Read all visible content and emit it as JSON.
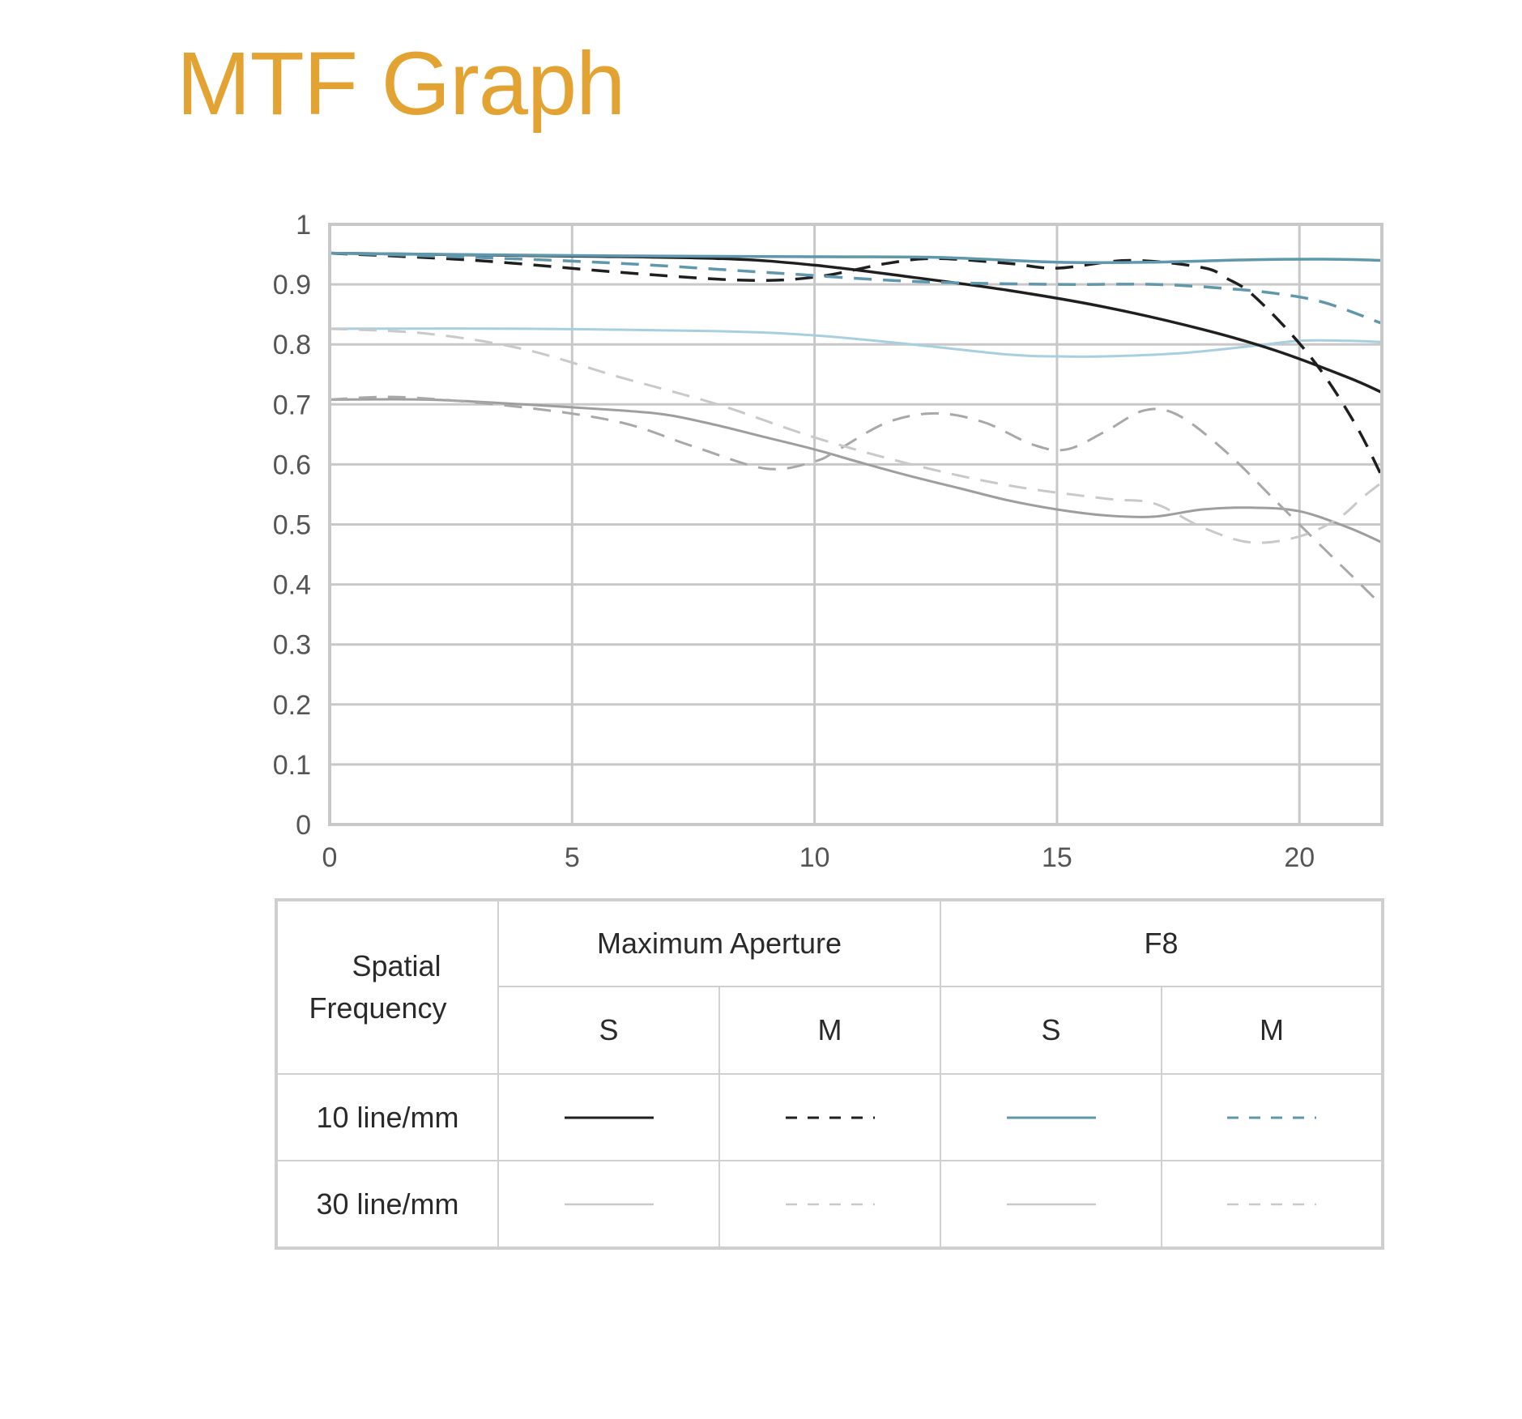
{
  "colors": {
    "title": "#E3A332",
    "grid": "#c8c8c8",
    "frame": "#c8c8c8",
    "max_aperture_10": "#1f1f1f",
    "f8_10": "#5f97ad",
    "max_aperture_30": "#9e9e9e",
    "max_aperture_30_m": "#a8a8a8",
    "f8_30_s": "#a8cfe0",
    "f8_30_m": "#c9c9c9"
  },
  "title": "MTF Graph",
  "chart_data": {
    "type": "line",
    "title": "MTF Graph",
    "xlabel": "",
    "ylabel": "",
    "xlim": [
      0,
      21.7
    ],
    "ylim": [
      0,
      1
    ],
    "x_ticks": [
      "0",
      "5",
      "10",
      "15",
      "20"
    ],
    "y_ticks": [
      "0",
      "0.1",
      "0.2",
      "0.3",
      "0.4",
      "0.5",
      "0.6",
      "0.7",
      "0.8",
      "0.9",
      "1"
    ],
    "grid": true,
    "series": [
      {
        "aperture": "Maximum Aperture",
        "frequency": "10 line/mm",
        "direction": "S",
        "color": "#1f1f1f",
        "dashed": false,
        "points": [
          [
            0,
            0.952
          ],
          [
            4,
            0.948
          ],
          [
            8,
            0.943
          ],
          [
            10,
            0.932
          ],
          [
            12,
            0.912
          ],
          [
            14,
            0.89
          ],
          [
            16,
            0.862
          ],
          [
            18,
            0.825
          ],
          [
            19.5,
            0.79
          ],
          [
            21,
            0.745
          ],
          [
            21.7,
            0.72
          ]
        ]
      },
      {
        "aperture": "Maximum Aperture",
        "frequency": "10 line/mm",
        "direction": "M",
        "color": "#1f1f1f",
        "dashed": true,
        "points": [
          [
            0,
            0.952
          ],
          [
            3,
            0.94
          ],
          [
            6,
            0.92
          ],
          [
            8.5,
            0.907
          ],
          [
            10,
            0.912
          ],
          [
            11.5,
            0.935
          ],
          [
            12.5,
            0.943
          ],
          [
            14,
            0.935
          ],
          [
            15,
            0.927
          ],
          [
            16.5,
            0.94
          ],
          [
            18,
            0.928
          ],
          [
            18.5,
            0.91
          ],
          [
            19,
            0.885
          ],
          [
            19.8,
            0.82
          ],
          [
            20.5,
            0.75
          ],
          [
            21.2,
            0.66
          ],
          [
            21.7,
            0.58
          ]
        ]
      },
      {
        "aperture": "F8",
        "frequency": "10 line/mm",
        "direction": "S",
        "color": "#5f97ad",
        "dashed": false,
        "points": [
          [
            0,
            0.952
          ],
          [
            5,
            0.948
          ],
          [
            10,
            0.946
          ],
          [
            12.5,
            0.945
          ],
          [
            15,
            0.937
          ],
          [
            17,
            0.937
          ],
          [
            19,
            0.941
          ],
          [
            20.5,
            0.942
          ],
          [
            21.7,
            0.94
          ]
        ]
      },
      {
        "aperture": "F8",
        "frequency": "10 line/mm",
        "direction": "M",
        "color": "#5f97ad",
        "dashed": true,
        "points": [
          [
            0,
            0.952
          ],
          [
            3,
            0.945
          ],
          [
            6,
            0.935
          ],
          [
            9,
            0.92
          ],
          [
            12,
            0.905
          ],
          [
            15,
            0.9
          ],
          [
            17,
            0.9
          ],
          [
            18.5,
            0.893
          ],
          [
            19.5,
            0.885
          ],
          [
            20.5,
            0.87
          ],
          [
            21.7,
            0.835
          ]
        ]
      },
      {
        "aperture": "Maximum Aperture",
        "frequency": "30 line/mm",
        "direction": "S",
        "color": "#9e9e9e",
        "dashed": false,
        "points": [
          [
            0,
            0.708
          ],
          [
            2,
            0.708
          ],
          [
            4,
            0.7
          ],
          [
            6,
            0.69
          ],
          [
            7,
            0.682
          ],
          [
            8,
            0.665
          ],
          [
            9,
            0.645
          ],
          [
            10,
            0.625
          ],
          [
            11,
            0.602
          ],
          [
            12,
            0.58
          ],
          [
            13,
            0.56
          ],
          [
            14,
            0.54
          ],
          [
            15,
            0.525
          ],
          [
            16,
            0.515
          ],
          [
            17,
            0.513
          ],
          [
            18,
            0.525
          ],
          [
            19,
            0.528
          ],
          [
            20,
            0.522
          ],
          [
            21,
            0.495
          ],
          [
            21.7,
            0.47
          ]
        ]
      },
      {
        "aperture": "Maximum Aperture",
        "frequency": "30 line/mm",
        "direction": "M",
        "color": "#a8a8a8",
        "dashed": true,
        "points": [
          [
            0,
            0.708
          ],
          [
            1.5,
            0.712
          ],
          [
            4,
            0.695
          ],
          [
            6,
            0.67
          ],
          [
            7.5,
            0.63
          ],
          [
            9,
            0.593
          ],
          [
            10,
            0.605
          ],
          [
            10.5,
            0.625
          ],
          [
            11.5,
            0.67
          ],
          [
            12.5,
            0.685
          ],
          [
            13.5,
            0.67
          ],
          [
            14.5,
            0.633
          ],
          [
            15.2,
            0.625
          ],
          [
            16,
            0.655
          ],
          [
            16.8,
            0.69
          ],
          [
            17.5,
            0.682
          ],
          [
            18.5,
            0.62
          ],
          [
            19.5,
            0.54
          ],
          [
            20.5,
            0.46
          ],
          [
            21.2,
            0.405
          ],
          [
            21.7,
            0.365
          ]
        ]
      },
      {
        "aperture": "F8",
        "frequency": "30 line/mm",
        "direction": "S",
        "color": "#a8cfe0",
        "dashed": false,
        "points": [
          [
            0,
            0.826
          ],
          [
            4,
            0.826
          ],
          [
            8,
            0.822
          ],
          [
            10,
            0.815
          ],
          [
            12,
            0.8
          ],
          [
            14,
            0.783
          ],
          [
            15,
            0.78
          ],
          [
            16,
            0.78
          ],
          [
            17.5,
            0.785
          ],
          [
            19,
            0.797
          ],
          [
            20,
            0.806
          ],
          [
            21,
            0.806
          ],
          [
            21.7,
            0.804
          ]
        ]
      },
      {
        "aperture": "F8",
        "frequency": "30 line/mm",
        "direction": "M",
        "color": "#c9c9c9",
        "dashed": true,
        "points": [
          [
            0,
            0.826
          ],
          [
            2,
            0.818
          ],
          [
            4,
            0.792
          ],
          [
            6,
            0.745
          ],
          [
            8,
            0.7
          ],
          [
            10,
            0.645
          ],
          [
            12,
            0.6
          ],
          [
            14,
            0.565
          ],
          [
            16,
            0.543
          ],
          [
            17,
            0.535
          ],
          [
            18,
            0.495
          ],
          [
            19,
            0.47
          ],
          [
            20,
            0.48
          ],
          [
            20.8,
            0.51
          ],
          [
            21.3,
            0.545
          ],
          [
            21.7,
            0.57
          ]
        ]
      }
    ]
  },
  "legend_table": {
    "row_header": "Spatial Frequency",
    "row_header_lines": [
      "Spatial",
      "Frequency"
    ],
    "groups": [
      "Maximum Aperture",
      "F8"
    ],
    "sub_headers": [
      "S",
      "M",
      "S",
      "M"
    ],
    "rows": [
      {
        "label": "10 line/mm",
        "swatches": [
          {
            "color": "#1f1f1f",
            "dashed": false
          },
          {
            "color": "#1f1f1f",
            "dashed": true
          },
          {
            "color": "#5f97ad",
            "dashed": false
          },
          {
            "color": "#5f97ad",
            "dashed": true
          }
        ]
      },
      {
        "label": "30 line/mm",
        "swatches": [
          {
            "color": "#c9c9c9",
            "dashed": false
          },
          {
            "color": "#c9c9c9",
            "dashed": true
          },
          {
            "color": "#c9c9c9",
            "dashed": false
          },
          {
            "color": "#c9c9c9",
            "dashed": true
          }
        ]
      }
    ]
  }
}
